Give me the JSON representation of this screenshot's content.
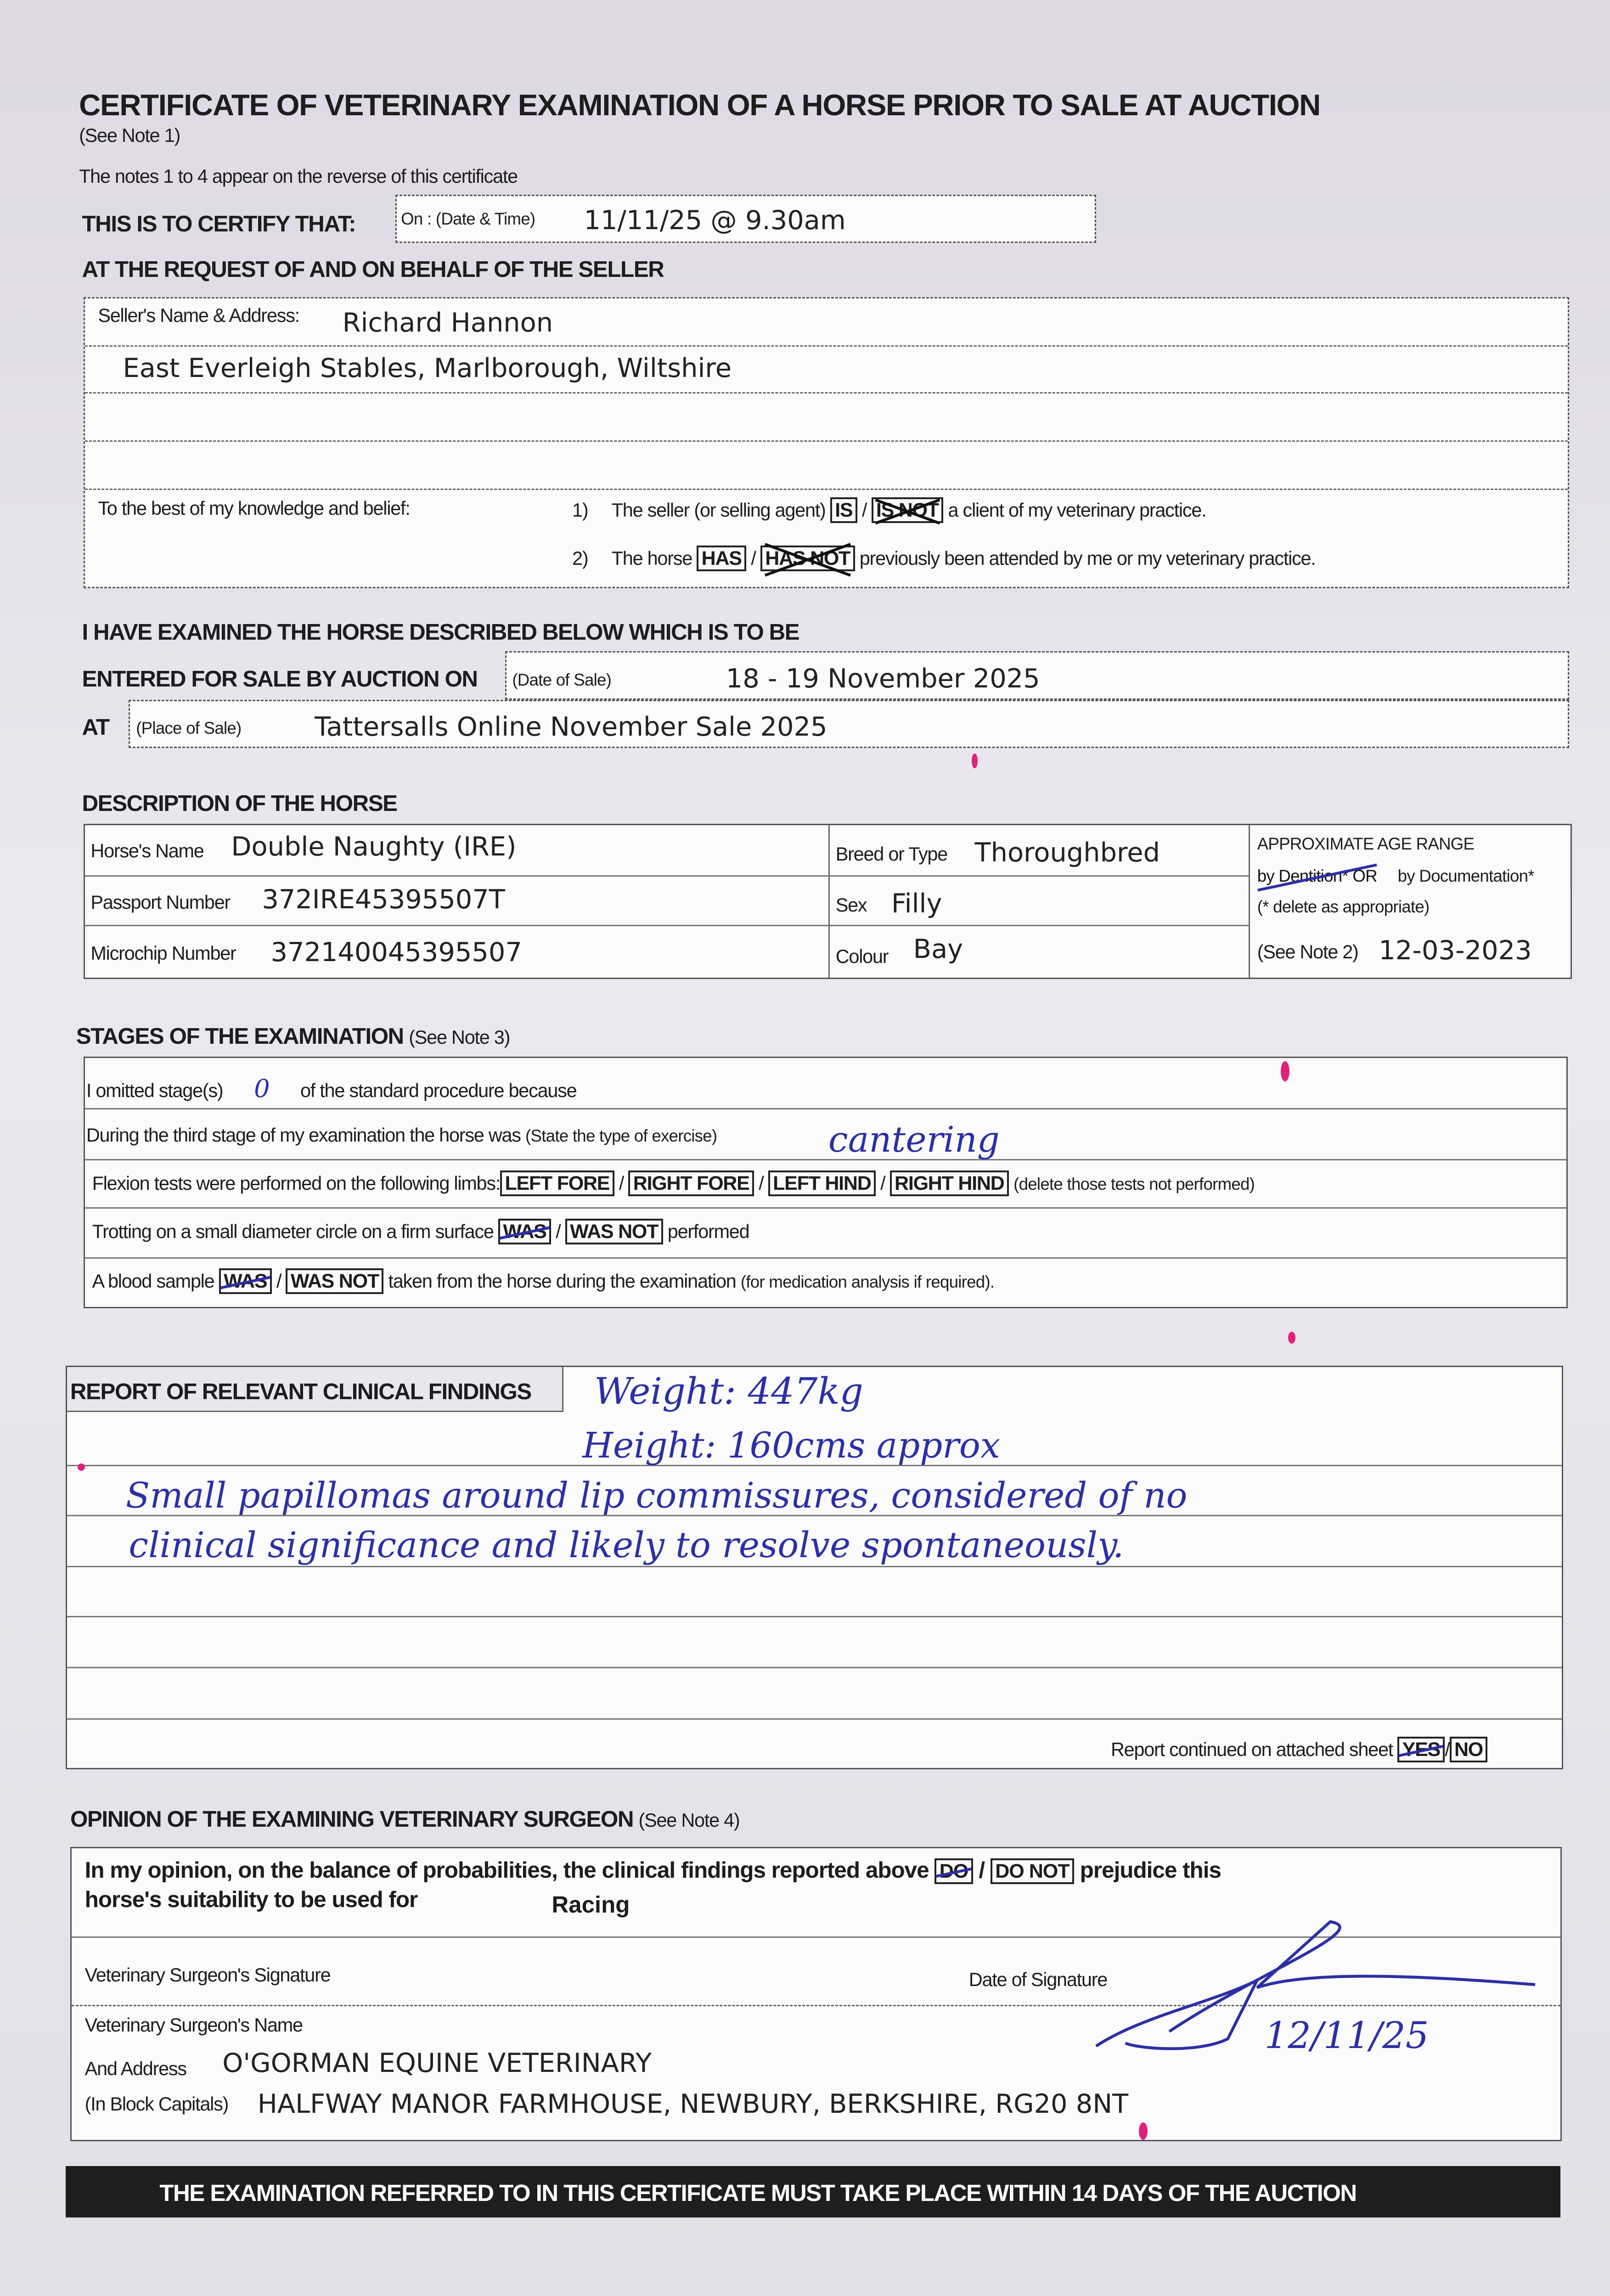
{
  "title": "CERTIFICATE OF VETERINARY EXAMINATION OF A HORSE PRIOR TO SALE AT AUCTION",
  "see_note_1": "(See Note 1)",
  "notes_line": "The notes 1 to 4 appear on the reverse of this certificate",
  "certify": {
    "label": "THIS IS TO CERTIFY THAT:",
    "field_label": "On : (Date & Time)",
    "value": "11/11/25 @ 9.30am"
  },
  "request_heading": "AT THE REQUEST OF AND ON BEHALF OF THE SELLER",
  "seller": {
    "label": "Seller's Name & Address:",
    "name": "Richard Hannon",
    "address_line1": "East Everleigh Stables, Marlborough, Wiltshire"
  },
  "knowledge": {
    "label": "To the best of my knowledge and belief:",
    "item1": {
      "num": "1)",
      "pre": "The seller (or selling agent)",
      "opt_a": "IS",
      "sep": "/",
      "opt_b": "IS NOT",
      "post": "a client of my veterinary practice.",
      "deleted": "IS NOT"
    },
    "item2": {
      "num": "2)",
      "pre": "The horse",
      "opt_a": "HAS",
      "sep": "/",
      "opt_b": "HAS NOT",
      "post": "previously been attended by me or my veterinary practice.",
      "deleted": "HAS NOT"
    }
  },
  "examined_heading": "I HAVE EXAMINED THE HORSE DESCRIBED BELOW WHICH IS TO BE",
  "sale": {
    "entered_label": "ENTERED FOR SALE BY AUCTION ON",
    "date_label": "(Date of Sale)",
    "date_value": "18 - 19 November 2025",
    "at_label": "AT",
    "place_label": "(Place of Sale)",
    "place_value": "Tattersalls Online November Sale 2025"
  },
  "description": {
    "heading": "DESCRIPTION OF THE HORSE",
    "name_label": "Horse's Name",
    "name_value": "Double Naughty (IRE)",
    "passport_label": "Passport Number",
    "passport_value": "372IRE45395507T",
    "microchip_label": "Microchip Number",
    "microchip_value": "372140045395507",
    "breed_label": "Breed or Type",
    "breed_value": "Thoroughbred",
    "sex_label": "Sex",
    "sex_value": "Filly",
    "colour_label": "Colour",
    "colour_value": "Bay",
    "age_heading": "APPROXIMATE AGE RANGE",
    "age_dentition": "by Dentition* OR",
    "age_documentation": "by Documentation*",
    "age_delete_note": "(* delete as appropriate)",
    "age_note": "(See Note 2)",
    "age_value": "12-03-2023"
  },
  "stages": {
    "heading": "STAGES OF THE EXAMINATION",
    "heading_note": "(See Note 3)",
    "omitted_pre": "I omitted stage(s)",
    "omitted_value": "0",
    "omitted_post": "of the standard procedure because",
    "third_stage_label": "During the third stage of my examination the horse was",
    "third_stage_hint": "(State the type of exercise)",
    "third_stage_value": "cantering",
    "flexion_label": "Flexion tests were performed on the following limbs:",
    "limbs": [
      "LEFT FORE",
      "RIGHT FORE",
      "LEFT HIND",
      "RIGHT HIND"
    ],
    "flexion_note": "(delete those tests not performed)",
    "trotting_label": "Trotting on a small diameter circle on a firm surface",
    "trot_a": "WAS",
    "trot_b": "WAS NOT",
    "trot_post": "performed",
    "blood_label": "A blood sample",
    "blood_a": "WAS",
    "blood_b": "WAS NOT",
    "blood_post": "taken from the horse during the examination",
    "blood_note": "(for medication analysis if required)."
  },
  "report": {
    "heading": "REPORT OF RELEVANT CLINICAL FINDINGS",
    "lines": [
      "Weight: 447kg",
      "Height: 160cms approx",
      "Small papillomas around lip commissures, considered of no",
      "clinical significance and likely to resolve spontaneously."
    ],
    "continued_label": "Report continued on attached sheet",
    "yes": "YES",
    "no": "NO"
  },
  "opinion": {
    "heading": "OPINION OF THE EXAMINING VETERINARY SURGEON",
    "heading_note": "(See Note 4)",
    "text_pre": "In my opinion, on the balance of probabilities, the clinical findings reported above",
    "do": "DO",
    "do_not": "DO NOT",
    "text_post": "prejudice this",
    "text_line2": "horse's suitability to be used for",
    "use_value": "Racing",
    "signature_label": "Veterinary Surgeon's Signature",
    "date_sig_label": "Date of Signature",
    "date_sig_value": "12/11/25",
    "name_label": "Veterinary Surgeon's Name",
    "address_label": "And Address",
    "block_caps_label": "(In Block Capitals)",
    "practice_name": "O'GORMAN EQUINE VETERINARY",
    "practice_address": "HALFWAY MANOR FARMHOUSE, NEWBURY, BERKSHIRE, RG20 8NT"
  },
  "footer": "THE EXAMINATION REFERRED TO IN THIS CERTIFICATE MUST TAKE PLACE WITHIN 14 DAYS OF THE AUCTION",
  "colors": {
    "ink": "#2b2fa6",
    "stain": "#e0207a",
    "footer_bg": "#1e1e1e"
  }
}
